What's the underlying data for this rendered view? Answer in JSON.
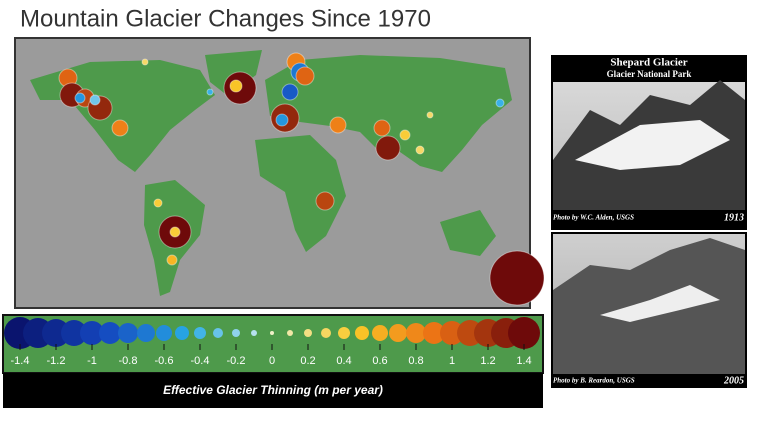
{
  "title": "Mountain Glacier Changes Since 1970",
  "legend": {
    "ticks": [
      -1.4,
      -1.2,
      -1,
      -0.8,
      -0.6,
      -0.4,
      -0.2,
      0,
      0.2,
      0.4,
      0.6,
      0.8,
      1,
      1.2,
      1.4
    ],
    "title": "Effective Glacier Thinning (m per year)"
  },
  "photos": [
    {
      "title": "Shepard Glacier",
      "subtitle": "Glacier National Park",
      "credit": "Photo by W.C. Alden, USGS",
      "year": "1913"
    },
    {
      "credit": "Photo by B. Reardon, USGS",
      "year": "2005"
    }
  ]
}
